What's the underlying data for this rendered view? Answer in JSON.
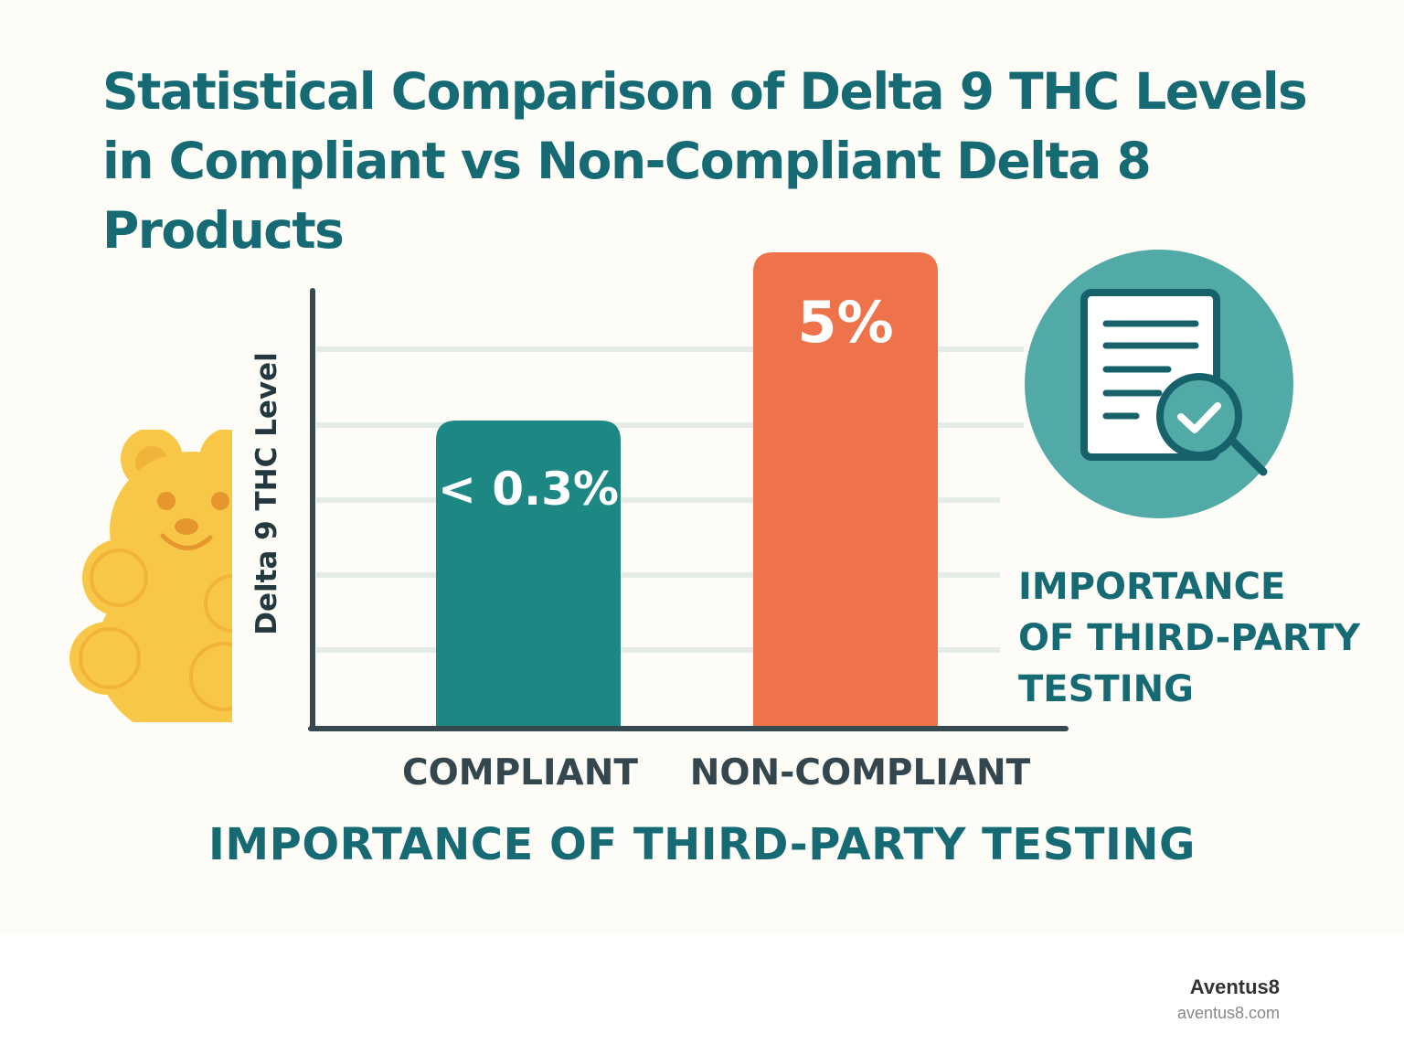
{
  "title_lines": [
    "Statistical Comparison of Delta 9 THC Levels",
    "in Compliant vs Non-Compliant Delta 8",
    "Products"
  ],
  "side_heading_lines": [
    "IMPORTANCE",
    "OF THIRD-PARTY",
    "TESTING"
  ],
  "bottom_heading": "IMPORTANCE OF THIRD-PARTY TESTING",
  "brand": {
    "name": "Aventus8",
    "url": "aventus8.com"
  },
  "icons": [
    "gummy-bear-icon",
    "document-check-icon"
  ],
  "colors": {
    "compliant": "#1d8783",
    "non_compliant": "#ee734a",
    "title": "#166a73",
    "bear": "#f9c748",
    "badge": "#52aaa7"
  },
  "chart_data": {
    "type": "bar",
    "ylabel": "Delta 9 THC Level",
    "categories": [
      "COMPLIANT",
      "NON-COMPLIANT"
    ],
    "values": [
      0.3,
      5
    ],
    "value_labels": [
      "< 0.3%",
      "5%"
    ],
    "grid": true,
    "y_tick_labels": false
  }
}
